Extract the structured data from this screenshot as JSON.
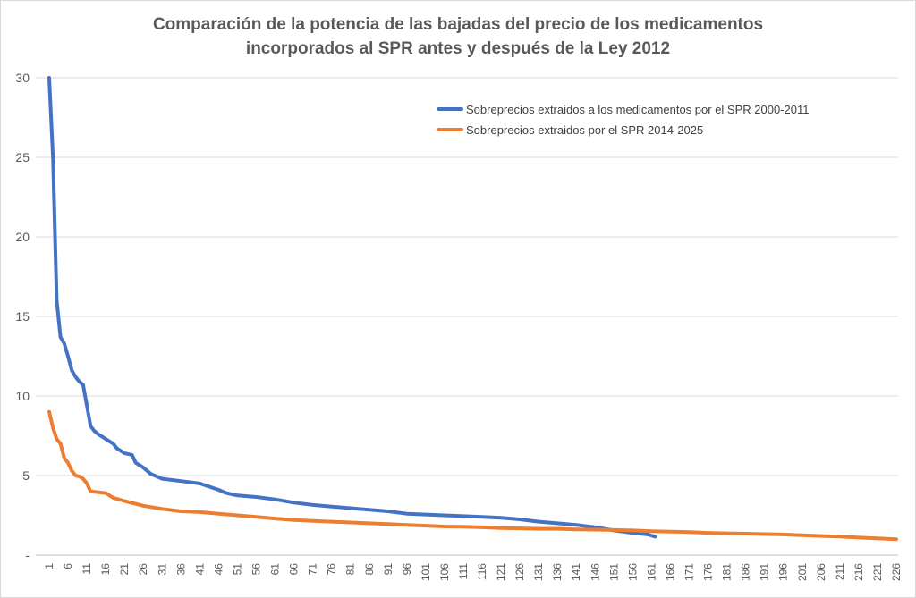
{
  "chart_data": {
    "type": "line",
    "title_line1": "Comparación de la potencia de las bajadas del precio de los medicamentos",
    "title_line2": "incorporados al SPR antes y después de la Ley 2012",
    "xlabel": "",
    "ylabel": "",
    "ylim": [
      0,
      30
    ],
    "y_ticks": [
      "-",
      "5",
      "10",
      "15",
      "20",
      "25",
      "30"
    ],
    "y_tick_values": [
      0,
      5,
      10,
      15,
      20,
      25,
      30
    ],
    "xlim": [
      1,
      226
    ],
    "x_ticks": [
      "1",
      "6",
      "11",
      "16",
      "21",
      "26",
      "31",
      "36",
      "41",
      "46",
      "51",
      "56",
      "61",
      "66",
      "71",
      "76",
      "81",
      "86",
      "91",
      "96",
      "101",
      "106",
      "111",
      "116",
      "121",
      "126",
      "131",
      "136",
      "141",
      "146",
      "151",
      "156",
      "161",
      "166",
      "171",
      "176",
      "181",
      "186",
      "191",
      "196",
      "201",
      "206",
      "211",
      "216",
      "221",
      "226"
    ],
    "grid": "horizontal",
    "legend_position": "top-right",
    "series": [
      {
        "name": "Sobreprecios extraidos a los medicamentos por el SPR 2000-2011",
        "color": "#4472C4",
        "points": [
          [
            1,
            30.0
          ],
          [
            2,
            25.0
          ],
          [
            3,
            16.0
          ],
          [
            4,
            13.7
          ],
          [
            5,
            13.3
          ],
          [
            6,
            12.5
          ],
          [
            7,
            11.6
          ],
          [
            8,
            11.2
          ],
          [
            9,
            10.9
          ],
          [
            10,
            10.7
          ],
          [
            11,
            9.4
          ],
          [
            12,
            8.1
          ],
          [
            13,
            7.8
          ],
          [
            14,
            7.6
          ],
          [
            16,
            7.3
          ],
          [
            18,
            7.0
          ],
          [
            19,
            6.7
          ],
          [
            21,
            6.4
          ],
          [
            23,
            6.3
          ],
          [
            24,
            5.8
          ],
          [
            26,
            5.5
          ],
          [
            28,
            5.1
          ],
          [
            30,
            4.9
          ],
          [
            31,
            4.8
          ],
          [
            36,
            4.65
          ],
          [
            41,
            4.5
          ],
          [
            46,
            4.1
          ],
          [
            48,
            3.9
          ],
          [
            51,
            3.75
          ],
          [
            56,
            3.65
          ],
          [
            61,
            3.5
          ],
          [
            66,
            3.3
          ],
          [
            71,
            3.15
          ],
          [
            76,
            3.05
          ],
          [
            81,
            2.95
          ],
          [
            86,
            2.85
          ],
          [
            91,
            2.75
          ],
          [
            96,
            2.6
          ],
          [
            101,
            2.55
          ],
          [
            106,
            2.5
          ],
          [
            111,
            2.45
          ],
          [
            116,
            2.4
          ],
          [
            121,
            2.35
          ],
          [
            126,
            2.25
          ],
          [
            131,
            2.1
          ],
          [
            136,
            2.0
          ],
          [
            141,
            1.9
          ],
          [
            146,
            1.75
          ],
          [
            151,
            1.55
          ],
          [
            156,
            1.4
          ],
          [
            160,
            1.3
          ],
          [
            162,
            1.15
          ]
        ]
      },
      {
        "name": "Sobreprecios extraidos por el SPR 2014-2025",
        "color": "#ED7D31",
        "points": [
          [
            1,
            9.0
          ],
          [
            2,
            8.0
          ],
          [
            3,
            7.3
          ],
          [
            4,
            7.0
          ],
          [
            5,
            6.1
          ],
          [
            6,
            5.8
          ],
          [
            7,
            5.3
          ],
          [
            8,
            5.0
          ],
          [
            9,
            4.95
          ],
          [
            10,
            4.8
          ],
          [
            11,
            4.5
          ],
          [
            12,
            4.0
          ],
          [
            16,
            3.9
          ],
          [
            18,
            3.6
          ],
          [
            21,
            3.4
          ],
          [
            26,
            3.1
          ],
          [
            31,
            2.9
          ],
          [
            36,
            2.75
          ],
          [
            41,
            2.7
          ],
          [
            46,
            2.6
          ],
          [
            51,
            2.5
          ],
          [
            56,
            2.4
          ],
          [
            61,
            2.3
          ],
          [
            66,
            2.2
          ],
          [
            71,
            2.15
          ],
          [
            76,
            2.1
          ],
          [
            81,
            2.05
          ],
          [
            86,
            2.0
          ],
          [
            91,
            1.95
          ],
          [
            96,
            1.9
          ],
          [
            101,
            1.85
          ],
          [
            106,
            1.8
          ],
          [
            111,
            1.78
          ],
          [
            116,
            1.75
          ],
          [
            121,
            1.7
          ],
          [
            126,
            1.68
          ],
          [
            131,
            1.65
          ],
          [
            136,
            1.65
          ],
          [
            141,
            1.62
          ],
          [
            146,
            1.6
          ],
          [
            151,
            1.58
          ],
          [
            156,
            1.55
          ],
          [
            161,
            1.5
          ],
          [
            166,
            1.48
          ],
          [
            171,
            1.45
          ],
          [
            176,
            1.4
          ],
          [
            181,
            1.37
          ],
          [
            186,
            1.35
          ],
          [
            191,
            1.32
          ],
          [
            196,
            1.3
          ],
          [
            201,
            1.25
          ],
          [
            206,
            1.2
          ],
          [
            211,
            1.17
          ],
          [
            216,
            1.1
          ],
          [
            221,
            1.05
          ],
          [
            226,
            1.0
          ]
        ]
      }
    ]
  }
}
